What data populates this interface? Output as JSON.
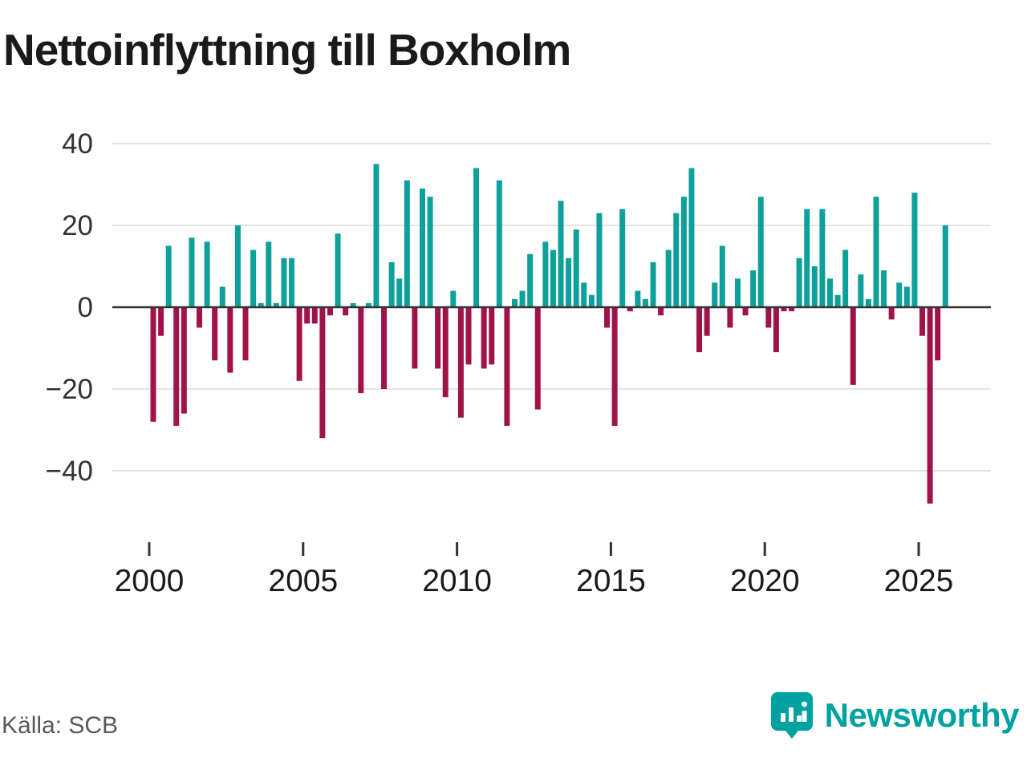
{
  "title": "Nettoinflyttning till Boxholm",
  "source": "Källa: SCB",
  "brand": {
    "name": "Newsworthy"
  },
  "chart_data": {
    "type": "bar",
    "title": "Nettoinflyttning till Boxholm",
    "xlabel": "",
    "ylabel": "",
    "x_start": "2000-Q1",
    "frequency": "quarterly",
    "values": [
      -28,
      -7,
      15,
      -29,
      -26,
      17,
      -5,
      16,
      -13,
      5,
      -16,
      20,
      -13,
      14,
      1,
      16,
      1,
      12,
      12,
      -18,
      -4,
      -4,
      -32,
      -2,
      18,
      -2,
      1,
      -21,
      1,
      35,
      -20,
      11,
      7,
      31,
      -15,
      29,
      27,
      -15,
      -22,
      4,
      -27,
      -14,
      34,
      -15,
      -14,
      31,
      -29,
      2,
      4,
      13,
      -25,
      16,
      14,
      26,
      12,
      19,
      6,
      3,
      23,
      -5,
      -29,
      24,
      -1,
      4,
      2,
      11,
      -2,
      14,
      23,
      27,
      34,
      -11,
      -7,
      6,
      15,
      -5,
      7,
      -2,
      9,
      27,
      -5,
      -11,
      -1,
      -1,
      12,
      24,
      10,
      24,
      7,
      3,
      14,
      -19,
      8,
      2,
      27,
      9,
      -3,
      6,
      5,
      28,
      -7,
      -48,
      -13,
      20
    ],
    "yticks": [
      40,
      20,
      0,
      -20,
      -40
    ],
    "ytick_labels": [
      "40",
      "20",
      "0",
      "−20",
      "−40"
    ],
    "xticks": [
      2000,
      2005,
      2010,
      2015,
      2020,
      2025
    ],
    "ylim": [
      -50,
      42
    ],
    "grid": true,
    "legend": "none",
    "colors": {
      "positive": "#0ea09a",
      "negative": "#a01349"
    },
    "source": "Källa: SCB"
  }
}
